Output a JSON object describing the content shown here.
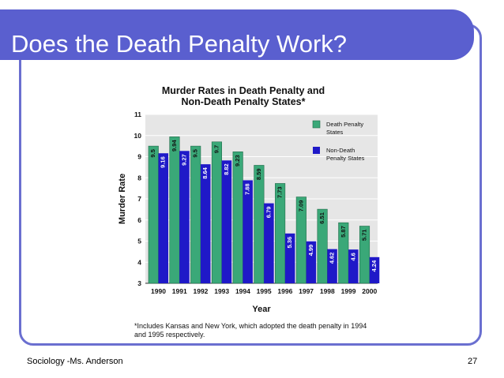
{
  "slide": {
    "title": "Does the Death Penalty Work?",
    "footer": "Sociology -Ms. Anderson",
    "page_number": "27"
  },
  "chart_data": {
    "type": "bar",
    "title_line1": "Murder Rates in Death Penalty and",
    "title_line2": "Non-Death Penalty States*",
    "xlabel": "Year",
    "ylabel": "Murder Rate",
    "ylim": [
      3,
      11
    ],
    "yticks": [
      3,
      4,
      5,
      6,
      7,
      8,
      9,
      10,
      11
    ],
    "categories": [
      "1990",
      "1991",
      "1992",
      "1993",
      "1994",
      "1995",
      "1996",
      "1997",
      "1998",
      "1999",
      "2000"
    ],
    "series": [
      {
        "name": "Death Penalty States",
        "color": "#3aa878",
        "values": [
          9.5,
          9.94,
          9.5,
          9.7,
          9.23,
          8.59,
          7.73,
          7.09,
          6.51,
          5.87,
          5.71
        ],
        "labels": [
          "9.5",
          "9.94",
          "9.5",
          "9.7",
          "9.23",
          "8.59",
          "7.73",
          "7.09",
          "6.51",
          "5.87",
          "5.71"
        ]
      },
      {
        "name": "Non-Death Penalty States",
        "color": "#1f19c8",
        "values": [
          9.16,
          9.27,
          8.64,
          8.82,
          7.88,
          6.79,
          5.36,
          4.99,
          4.62,
          4.6,
          4.24
        ],
        "labels": [
          "9.16",
          "9.27",
          "8.64",
          "8.82",
          "7.88",
          "6.79",
          "5.36",
          "4.99",
          "4.62",
          "4.6",
          "4.24"
        ]
      }
    ],
    "legend": [
      {
        "line1": "Death Penalty",
        "line2": "States"
      },
      {
        "line1": "Non-Death",
        "line2": "Penalty States"
      }
    ],
    "legend_position": "top-right",
    "plot_background": "#e6e6e6",
    "footnote_line1": "*Includes Kansas and New York, which adopted the death penalty in 1994",
    "footnote_line2": "and 1995 respectively."
  }
}
